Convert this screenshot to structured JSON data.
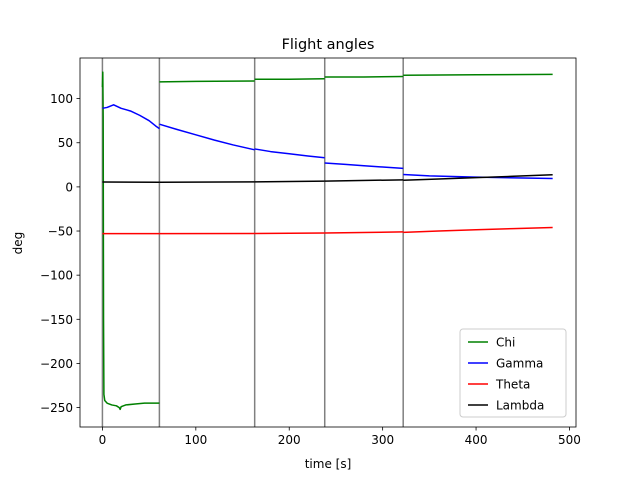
{
  "chart_data": {
    "type": "line",
    "title": "Flight angles",
    "xlabel": "time [s]",
    "ylabel": "deg",
    "xlim": [
      -24,
      507
    ],
    "ylim": [
      -272,
      146
    ],
    "xticks": [
      0,
      100,
      200,
      300,
      400,
      500
    ],
    "yticks": [
      -250,
      -200,
      -150,
      -100,
      -50,
      0,
      50,
      100
    ],
    "xtick_labels": [
      "0",
      "100",
      "200",
      "300",
      "400",
      "500"
    ],
    "ytick_labels": [
      "−250",
      "−200",
      "−150",
      "−100",
      "−50",
      "0",
      "50",
      "100"
    ],
    "grid": false,
    "legend_position": "lower-right",
    "vlines": {
      "x": [
        0,
        61,
        163,
        238,
        322
      ],
      "color": "#808080"
    },
    "series": [
      {
        "name": "Chi",
        "color": "#008000",
        "segments": [
          [
            [
              0,
              113
            ],
            [
              0.4,
              130
            ],
            [
              0.8,
              80
            ],
            [
              1.2,
              -150
            ],
            [
              1.6,
              -235
            ],
            [
              2.5,
              -242
            ],
            [
              5,
              -245
            ],
            [
              10,
              -247
            ],
            [
              15,
              -248
            ],
            [
              18,
              -250
            ],
            [
              19,
              -252
            ],
            [
              20,
              -249
            ],
            [
              25,
              -247
            ],
            [
              35,
              -246
            ],
            [
              45,
              -245
            ],
            [
              55,
              -245
            ],
            [
              61,
              -245
            ]
          ],
          [
            [
              61,
              119
            ],
            [
              100,
              119.5
            ],
            [
              163,
              120
            ]
          ],
          [
            [
              163,
              122
            ],
            [
              200,
              122
            ],
            [
              238,
              122.5
            ]
          ],
          [
            [
              238,
              124.5
            ],
            [
              280,
              124.5
            ],
            [
              322,
              125
            ]
          ],
          [
            [
              322,
              126.5
            ],
            [
              400,
              127
            ],
            [
              482,
              127.5
            ]
          ]
        ]
      },
      {
        "name": "Gamma",
        "color": "#0000ff",
        "segments": [
          [
            [
              0,
              89
            ],
            [
              5,
              90
            ],
            [
              12,
              93
            ],
            [
              20,
              89
            ],
            [
              30,
              86
            ],
            [
              40,
              81
            ],
            [
              50,
              75
            ],
            [
              57,
              69
            ],
            [
              61,
              66
            ]
          ],
          [
            [
              61,
              71
            ],
            [
              80,
              65
            ],
            [
              100,
              59
            ],
            [
              120,
              53
            ],
            [
              140,
              47.5
            ],
            [
              163,
              42
            ]
          ],
          [
            [
              163,
              43
            ],
            [
              180,
              40
            ],
            [
              200,
              37.5
            ],
            [
              220,
              35
            ],
            [
              238,
              33
            ]
          ],
          [
            [
              238,
              27
            ],
            [
              260,
              25.5
            ],
            [
              280,
              24
            ],
            [
              300,
              22.5
            ],
            [
              322,
              21
            ]
          ],
          [
            [
              322,
              14
            ],
            [
              350,
              12.5
            ],
            [
              400,
              11
            ],
            [
              450,
              10
            ],
            [
              482,
              9.5
            ]
          ]
        ]
      },
      {
        "name": "Theta",
        "color": "#ff0000",
        "segments": [
          [
            [
              0,
              -53
            ],
            [
              61,
              -53
            ]
          ],
          [
            [
              61,
              -53
            ],
            [
              163,
              -52.8
            ]
          ],
          [
            [
              163,
              -52.8
            ],
            [
              238,
              -52.3
            ]
          ],
          [
            [
              238,
              -52.3
            ],
            [
              322,
              -51
            ]
          ],
          [
            [
              322,
              -51.5
            ],
            [
              360,
              -50
            ],
            [
              400,
              -48.5
            ],
            [
              440,
              -47.3
            ],
            [
              482,
              -46
            ]
          ]
        ]
      },
      {
        "name": "Lambda",
        "color": "#000000",
        "segments": [
          [
            [
              0,
              5.5
            ],
            [
              61,
              5.3
            ]
          ],
          [
            [
              61,
              5.3
            ],
            [
              163,
              5.7
            ]
          ],
          [
            [
              163,
              5.7
            ],
            [
              238,
              6.5
            ]
          ],
          [
            [
              238,
              6.5
            ],
            [
              322,
              8
            ]
          ],
          [
            [
              322,
              7.5
            ],
            [
              360,
              9
            ],
            [
              400,
              10.5
            ],
            [
              440,
              12
            ],
            [
              482,
              13.8
            ]
          ]
        ]
      }
    ]
  }
}
